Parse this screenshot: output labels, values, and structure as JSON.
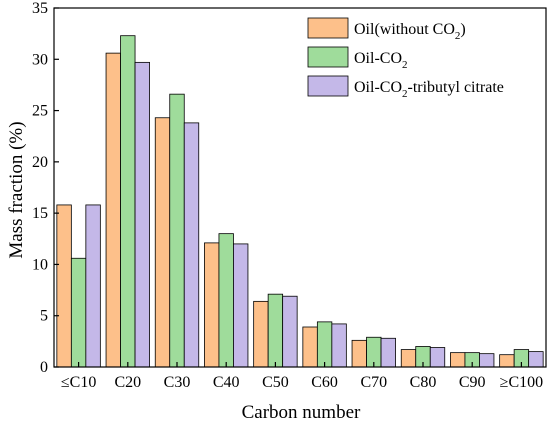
{
  "chart_data": {
    "type": "bar",
    "xlabel": "Carbon number",
    "ylabel": "Mass fraction (%)",
    "ylim": [
      0,
      35
    ],
    "yticks": [
      0,
      5,
      10,
      15,
      20,
      25,
      30,
      35
    ],
    "grid": false,
    "legend_position": "top-right",
    "categories": [
      "≤C10",
      "C20",
      "C30",
      "C40",
      "C50",
      "C60",
      "C70",
      "C80",
      "C90",
      "≥C100"
    ],
    "series": [
      {
        "name": "Oil(without CO2)",
        "name_base": "Oil(without CO",
        "name_sub": "2",
        "name_tail": ")",
        "color": "#FDC08A",
        "values": [
          15.8,
          30.6,
          24.3,
          12.1,
          6.4,
          3.9,
          2.6,
          1.7,
          1.4,
          1.2
        ]
      },
      {
        "name": "Oil-CO2",
        "name_base": "Oil-CO",
        "name_sub": "2",
        "name_tail": "",
        "color": "#9FDC9B",
        "values": [
          10.6,
          32.3,
          26.6,
          13.0,
          7.1,
          4.4,
          2.9,
          2.0,
          1.4,
          1.7
        ]
      },
      {
        "name": "Oil-CO2-tributyl citrate",
        "name_base": "Oil-CO",
        "name_sub": "2",
        "name_tail": "-tributyl citrate",
        "color": "#C4B8E8",
        "values": [
          15.8,
          29.7,
          23.8,
          12.0,
          6.9,
          4.2,
          2.8,
          1.9,
          1.3,
          1.5
        ]
      }
    ]
  }
}
